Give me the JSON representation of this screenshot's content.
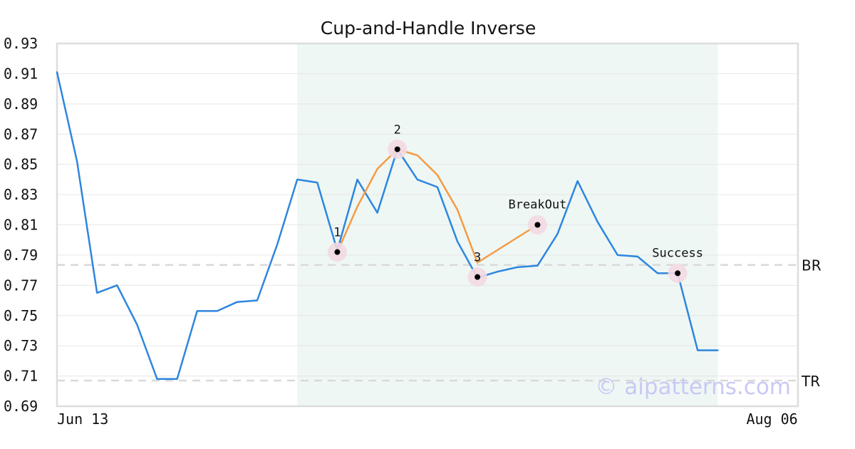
{
  "chart_data": {
    "type": "line",
    "title": "Cup-and-Handle Inverse",
    "xlabel": "",
    "ylabel": "",
    "ylim": [
      0.69,
      0.93
    ],
    "yticks": [
      "0.93",
      "0.91",
      "0.89",
      "0.87",
      "0.85",
      "0.83",
      "0.81",
      "0.79",
      "0.77",
      "0.75",
      "0.73",
      "0.71",
      "0.69"
    ],
    "xtick_labels": [
      {
        "index": 0,
        "label": "Jun 13"
      },
      {
        "index": 37,
        "label": "Aug 06"
      }
    ],
    "grid": "horizontal",
    "series": [
      {
        "values": [
          0.911,
          0.852,
          0.765,
          0.77,
          0.744,
          0.708,
          0.708,
          0.753,
          0.753,
          0.759,
          0.76,
          0.797,
          0.84,
          0.838,
          0.793,
          0.84,
          0.818,
          0.86,
          0.84,
          0.835,
          0.799,
          0.775,
          0.779,
          0.782,
          0.783,
          0.804,
          0.839,
          0.812,
          0.79,
          0.789,
          0.778,
          0.778,
          0.727,
          0.727
        ],
        "color": "#2e86de"
      },
      {
        "values": [
          [
            14,
            0.792
          ],
          [
            15,
            0.822
          ],
          [
            16,
            0.847
          ],
          [
            17,
            0.86
          ],
          [
            18,
            0.856
          ],
          [
            19,
            0.843
          ],
          [
            20,
            0.82
          ],
          [
            21,
            0.785
          ],
          [
            24,
            0.81
          ]
        ],
        "color": "#f59b42"
      }
    ],
    "highlight_range": {
      "from": 12,
      "to": 33,
      "color": "#eef7f4"
    },
    "reference_lines": [
      {
        "label": "BR",
        "value": 0.7835
      },
      {
        "label": "TR",
        "value": 0.707
      }
    ],
    "annotations": [
      {
        "label": "1",
        "x": 14,
        "y": 0.792
      },
      {
        "label": "2",
        "x": 17,
        "y": 0.86
      },
      {
        "label": "3",
        "x": 21,
        "y": 0.7755
      },
      {
        "label": "BreakOut",
        "x": 24,
        "y": 0.81
      },
      {
        "label": "Success",
        "x": 31,
        "y": 0.778
      }
    ],
    "watermark": "© aipatterns.com"
  }
}
